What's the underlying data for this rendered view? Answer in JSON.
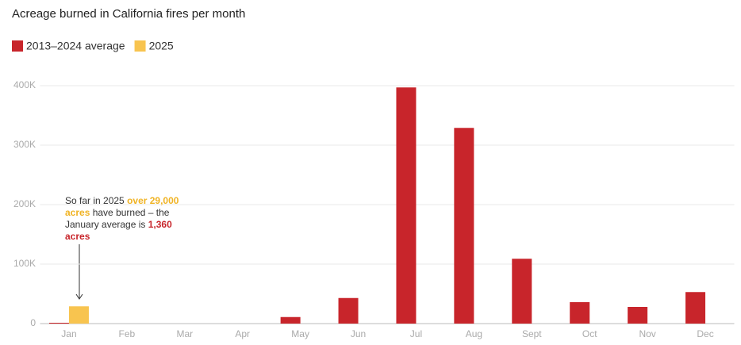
{
  "chart_data": {
    "type": "bar",
    "title": "Acreage burned in California fires per month",
    "categories": [
      "Jan",
      "Feb",
      "Mar",
      "Apr",
      "May",
      "Jun",
      "Jul",
      "Aug",
      "Sept",
      "Oct",
      "Nov",
      "Dec"
    ],
    "series": [
      {
        "name": "2013–2024 average",
        "color": "#c8252b",
        "values": [
          1360,
          0,
          0,
          0,
          11000,
          43000,
          397000,
          329000,
          109000,
          36000,
          28000,
          53000
        ]
      },
      {
        "name": "2025",
        "color": "#f8c44f",
        "values": [
          29000,
          null,
          null,
          null,
          null,
          null,
          null,
          null,
          null,
          null,
          null,
          null
        ]
      }
    ],
    "ylim": [
      0,
      400000
    ],
    "yticks": [
      0,
      {
        "value": 100000,
        "label": "100K"
      },
      {
        "value": 200000,
        "label": "200K"
      },
      {
        "value": 300000,
        "label": "300K"
      },
      {
        "value": 400000,
        "label": "400K"
      }
    ],
    "grid": true,
    "annotation": [
      "So far in 2025 ",
      "over 29,000 acres",
      " have burned – the January average is ",
      "1,360 acres"
    ]
  }
}
